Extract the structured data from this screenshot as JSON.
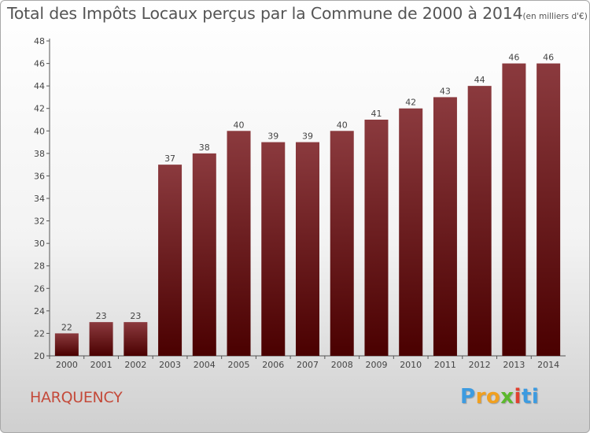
{
  "chart_data": {
    "type": "bar",
    "title": "Total des Impôts Locaux perçus par la Commune de 2000 à 2014",
    "subtitle": "(en milliers d'€)",
    "categories": [
      "2000",
      "2001",
      "2002",
      "2003",
      "2004",
      "2005",
      "2006",
      "2007",
      "2008",
      "2009",
      "2010",
      "2011",
      "2012",
      "2013",
      "2014"
    ],
    "values": [
      22,
      23,
      23,
      37,
      38,
      40,
      39,
      39,
      40,
      41,
      42,
      43,
      44,
      46,
      46
    ],
    "ylim": [
      20,
      48
    ],
    "yticks": [
      20,
      22,
      24,
      26,
      28,
      30,
      32,
      34,
      36,
      38,
      40,
      42,
      44,
      46,
      48
    ],
    "xlabel": "",
    "ylabel": "",
    "grid": false,
    "legend": "none",
    "bar_color_top": "#8b3a3e",
    "bar_color_bottom": "#4a0000"
  },
  "commune": "HARQUENCY",
  "logo": {
    "letters": [
      "P",
      "r",
      "o",
      "x",
      "i",
      "t",
      "i"
    ],
    "colors": [
      "#3d9be0",
      "#f0a020",
      "#f0a020",
      "#5cb82e",
      "#e04030",
      "#3d9be0",
      "#3d9be0"
    ]
  }
}
